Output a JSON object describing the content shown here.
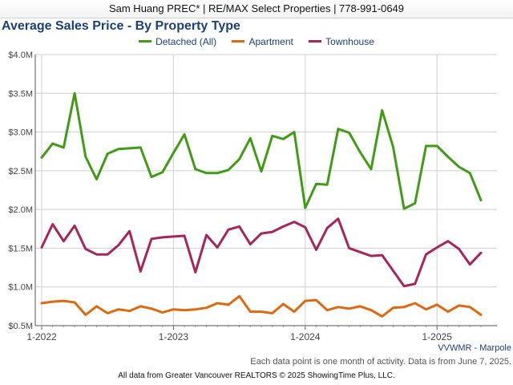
{
  "agent_bar": "Sam Huang PREC* | RE/MAX Select Properties | 778-991-0649",
  "area_label": "VVWMR - Marpole",
  "activity_note": "Each data point is one month of activity. Data is from June 7, 2025.",
  "source_note": "All data from Greater Vancouver REALTORS © 2025 ShowingTime Plus, LLC.",
  "colors": {
    "title": "#1c3f7a",
    "grid": "#cfcfcf",
    "axis": "#555555"
  },
  "chart_data": {
    "type": "line",
    "title": "Average Sales Price - By Property Type",
    "xlabel": "",
    "ylabel": "",
    "legend_position": "top-center",
    "grid": true,
    "ylim": [
      500000,
      4000000
    ],
    "y_ticks": [
      {
        "value": 500000,
        "label": "$0.5M"
      },
      {
        "value": 1000000,
        "label": "$1.0M"
      },
      {
        "value": 1500000,
        "label": "$1.5M"
      },
      {
        "value": 2000000,
        "label": "$2.0M"
      },
      {
        "value": 2500000,
        "label": "$2.5M"
      },
      {
        "value": 3000000,
        "label": "$3.0M"
      },
      {
        "value": 3500000,
        "label": "$3.5M"
      },
      {
        "value": 4000000,
        "label": "$4.0M"
      }
    ],
    "x_ticks": [
      {
        "label": "1-2022",
        "month_index": 0
      },
      {
        "label": "1-2023",
        "month_index": 12
      },
      {
        "label": "1-2024",
        "month_index": 24
      },
      {
        "label": "1-2025",
        "month_index": 36
      }
    ],
    "x": [
      "2022-01",
      "2022-02",
      "2022-03",
      "2022-04",
      "2022-05",
      "2022-06",
      "2022-07",
      "2022-08",
      "2022-09",
      "2022-10",
      "2022-11",
      "2022-12",
      "2023-01",
      "2023-02",
      "2023-03",
      "2023-04",
      "2023-05",
      "2023-06",
      "2023-07",
      "2023-08",
      "2023-09",
      "2023-10",
      "2023-11",
      "2023-12",
      "2024-01",
      "2024-02",
      "2024-03",
      "2024-04",
      "2024-05",
      "2024-06",
      "2024-07",
      "2024-08",
      "2024-09",
      "2024-10",
      "2024-11",
      "2024-12",
      "2025-01",
      "2025-02",
      "2025-03",
      "2025-04",
      "2025-05"
    ],
    "series": [
      {
        "name": "Detached (All)",
        "color": "#3f9c14",
        "values": [
          2670000,
          2850000,
          2800000,
          3500000,
          2680000,
          2390000,
          2720000,
          2780000,
          2790000,
          2800000,
          2420000,
          2480000,
          2730000,
          2970000,
          2520000,
          2470000,
          2470000,
          2510000,
          2650000,
          2920000,
          2490000,
          2950000,
          2910000,
          3000000,
          2020000,
          2330000,
          2320000,
          3040000,
          2990000,
          2740000,
          2520000,
          3280000,
          2810000,
          2010000,
          2080000,
          2820000,
          2820000,
          2680000,
          2550000,
          2470000,
          2120000
        ]
      },
      {
        "name": "Apartment",
        "color": "#e0690f",
        "values": [
          790000,
          810000,
          820000,
          800000,
          640000,
          750000,
          660000,
          710000,
          690000,
          750000,
          720000,
          670000,
          710000,
          700000,
          710000,
          730000,
          790000,
          770000,
          880000,
          680000,
          680000,
          660000,
          780000,
          680000,
          820000,
          830000,
          700000,
          740000,
          720000,
          750000,
          700000,
          620000,
          730000,
          740000,
          790000,
          710000,
          770000,
          680000,
          760000,
          740000,
          640000
        ]
      },
      {
        "name": "Townhouse",
        "color": "#a8255c",
        "values": [
          1510000,
          1810000,
          1590000,
          1790000,
          1490000,
          1420000,
          1420000,
          1540000,
          1720000,
          1200000,
          1620000,
          1640000,
          1650000,
          1660000,
          1190000,
          1670000,
          1510000,
          1740000,
          1780000,
          1550000,
          1690000,
          1710000,
          1780000,
          1840000,
          1770000,
          1480000,
          1760000,
          1880000,
          1500000,
          1450000,
          1400000,
          1410000,
          1210000,
          1010000,
          1040000,
          1420000,
          1510000,
          1590000,
          1490000,
          1290000,
          1440000
        ]
      }
    ]
  }
}
